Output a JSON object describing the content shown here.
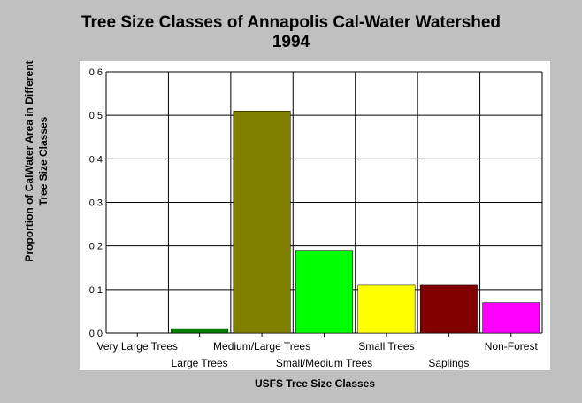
{
  "chart_data": {
    "type": "bar",
    "title": "Tree Size Classes of Annapolis Cal-Water Watershed",
    "subtitle": "1994",
    "xlabel": "USFS Tree Size Classes",
    "ylabel": "Proportion of CalWater Area in Different Tree Size Classes",
    "categories": [
      "Very Large Trees",
      "Large Trees",
      "Medium/Large Trees",
      "Small/Medium Trees",
      "Small Trees",
      "Saplings",
      "Non-Forest"
    ],
    "values": [
      0.0,
      0.01,
      0.51,
      0.19,
      0.11,
      0.11,
      0.07
    ],
    "colors": [
      "#008000",
      "#008000",
      "#808000",
      "#00ff00",
      "#ffff00",
      "#800000",
      "#ff00ff"
    ],
    "ylim": [
      0,
      0.6
    ],
    "yticks": [
      "0.0",
      "0.1",
      "0.2",
      "0.3",
      "0.4",
      "0.5",
      "0.6"
    ],
    "grid": true
  }
}
